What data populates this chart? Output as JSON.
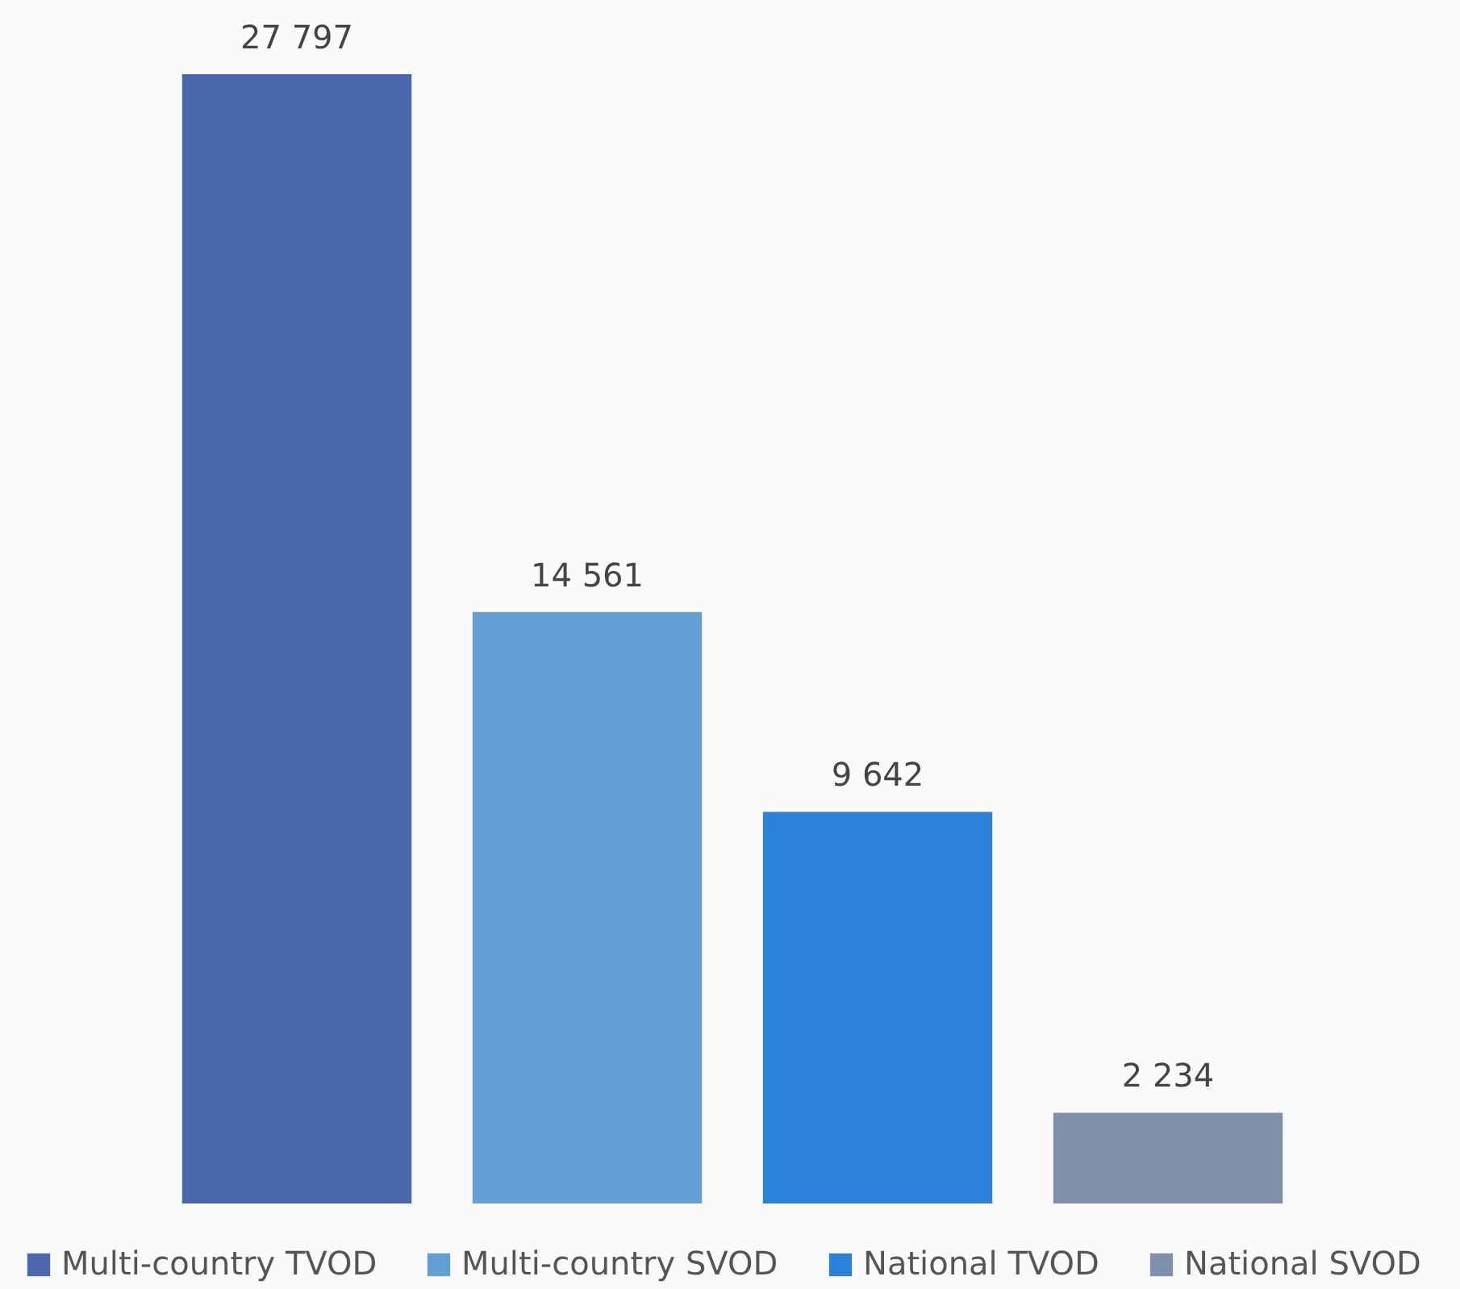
{
  "chart_data": {
    "type": "bar",
    "categories": [
      null
    ],
    "series": [
      {
        "name": "Multi-country TVOD",
        "color": "#4a68ae",
        "values": [
          27797
        ]
      },
      {
        "name": "Multi-country SVOD",
        "color": "#629fd3",
        "values": [
          14561
        ]
      },
      {
        "name": "National TVOD",
        "color": "#2b80d8",
        "values": [
          9642
        ]
      },
      {
        "name": "National SVOD",
        "color": "#8090aa",
        "values": [
          2234
        ]
      }
    ],
    "data_labels": true,
    "legend": "bottom",
    "tick_labels": false
  }
}
